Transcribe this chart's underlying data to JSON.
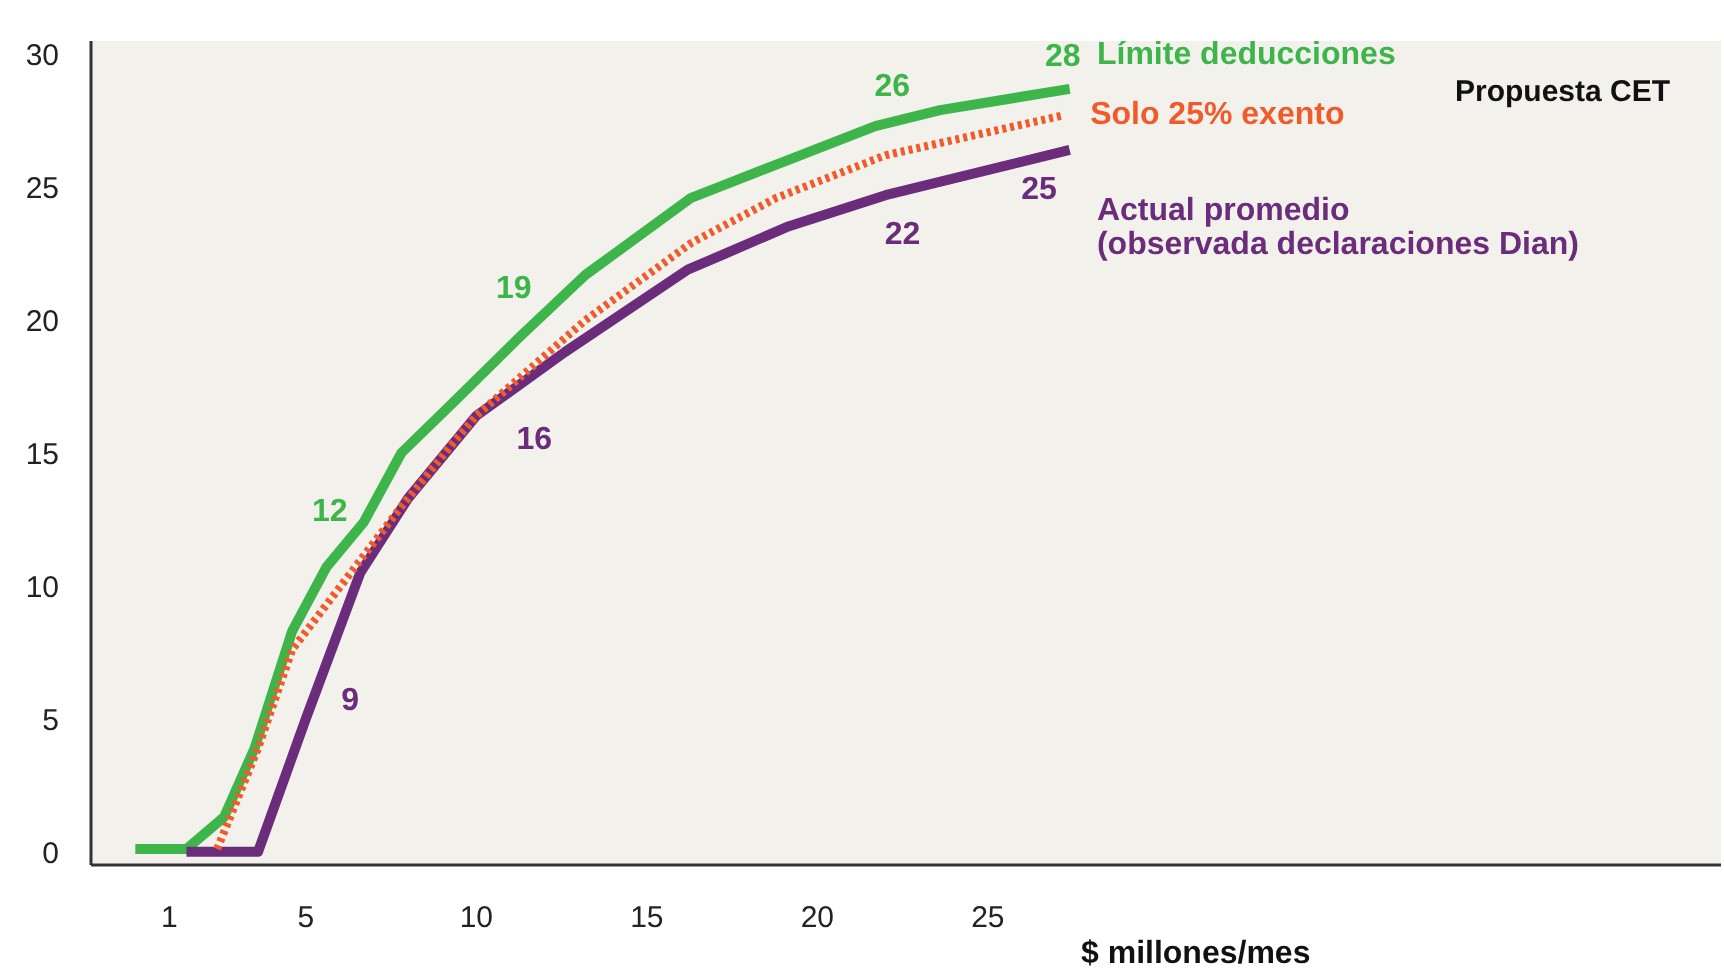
{
  "chart_data": {
    "type": "line",
    "xlabel": "$ millones/mes",
    "xlim": [
      -1.3,
      46.5
    ],
    "ylim": [
      -0.5,
      30.5
    ],
    "xticks": [
      1,
      5,
      10,
      15,
      20,
      25
    ],
    "yticks": [
      0,
      5,
      10,
      15,
      20,
      25,
      30
    ],
    "grid": false,
    "marker": "none",
    "series": [
      {
        "name": "Límite deducciones",
        "color": "#3db54a",
        "line_style": "solid",
        "x": [
          0.0,
          1.5,
          2.6,
          3.5,
          4.6,
          5.6,
          6.7,
          7.8,
          9.4,
          11.3,
          13.2,
          16.3,
          17.5,
          19.1,
          21.7,
          23.6,
          27.4
        ],
        "values": [
          0.1,
          0.1,
          1.3,
          3.9,
          8.3,
          10.7,
          12.4,
          15.0,
          17.0,
          19.4,
          21.7,
          24.6,
          25.2,
          26.0,
          27.3,
          27.9,
          28.7
        ]
      },
      {
        "name": "Solo 25% exento",
        "color": "#f15a2b",
        "line_style": "dotted",
        "x": [
          2.4,
          3.6,
          4.6,
          6.5,
          7.75,
          9.4,
          10.0,
          13.2,
          16.3,
          18.8,
          22.0,
          27.2
        ],
        "values": [
          0.1,
          3.9,
          7.6,
          10.8,
          12.9,
          15.5,
          16.4,
          20.0,
          22.9,
          24.6,
          26.2,
          27.7
        ]
      },
      {
        "name": "Actual promedio\n(observada declaraciones Dian)",
        "color": "#6b2c7b",
        "line_style": "solid",
        "x": [
          1.5,
          3.6,
          5.0,
          6.6,
          8.0,
          10.0,
          12.6,
          16.2,
          17.3,
          19.1,
          22.0,
          27.4
        ],
        "values": [
          0.0,
          0.0,
          5.0,
          10.5,
          13.3,
          16.4,
          18.8,
          21.9,
          22.5,
          23.5,
          24.7,
          26.4
        ]
      }
    ],
    "annotations": [
      "28",
      "26",
      "19",
      "12",
      "9",
      "16",
      "22",
      "25",
      "Propuesta CET"
    ]
  }
}
